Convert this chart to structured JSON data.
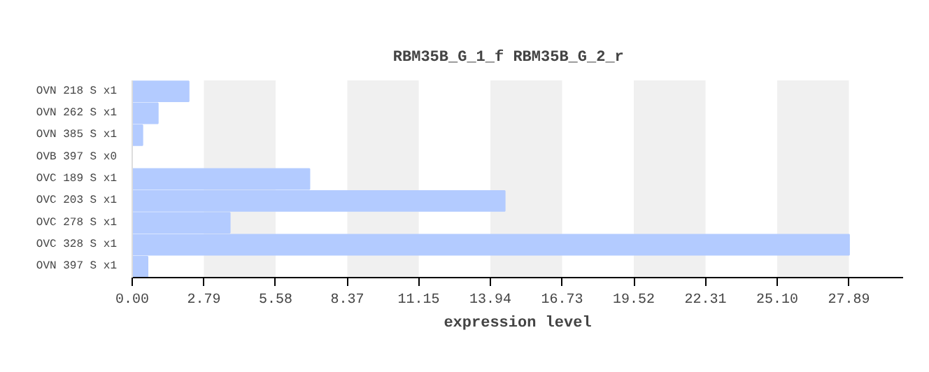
{
  "chart_data": {
    "type": "bar",
    "orientation": "horizontal",
    "title": "RBM35B_G_1_f   RBM35B_G_2_r",
    "xlabel": "expression level",
    "categories": [
      "OVN 218 S x1",
      "OVN 262 S x1",
      "OVN 385 S x1",
      "OVB 397 S x0",
      "OVC 189 S x1",
      "OVC 203 S x1",
      "OVC 278 S x1",
      "OVC 328 S x1",
      "OVN 397 S x1"
    ],
    "values": [
      2.2,
      1.0,
      0.4,
      0,
      6.9,
      14.5,
      3.8,
      27.9,
      0.6
    ],
    "color": "#b3cbff",
    "xlim": [
      0,
      30.0
    ],
    "xticks": [
      {
        "value": 0,
        "label": "0.00"
      },
      2.79,
      5.58,
      8.37,
      11.15,
      13.94,
      16.73,
      19.52,
      22.31,
      {
        "value": 25.1,
        "label": "25.10"
      },
      27.89
    ],
    "bands": [
      {
        "axis": "x",
        "from": 2.79,
        "to": 5.58,
        "color": "#f0f0f0"
      },
      {
        "axis": "x",
        "from": 8.37,
        "to": 11.15,
        "color": "#f0f0f0"
      },
      {
        "axis": "x",
        "from": 13.94,
        "to": 16.73,
        "color": "#f0f0f0"
      },
      {
        "axis": "x",
        "from": 19.52,
        "to": 22.31,
        "color": "#f0f0f0"
      },
      {
        "axis": "x",
        "from": 25.1,
        "to": 27.89,
        "color": "#f0f0f0"
      }
    ]
  }
}
